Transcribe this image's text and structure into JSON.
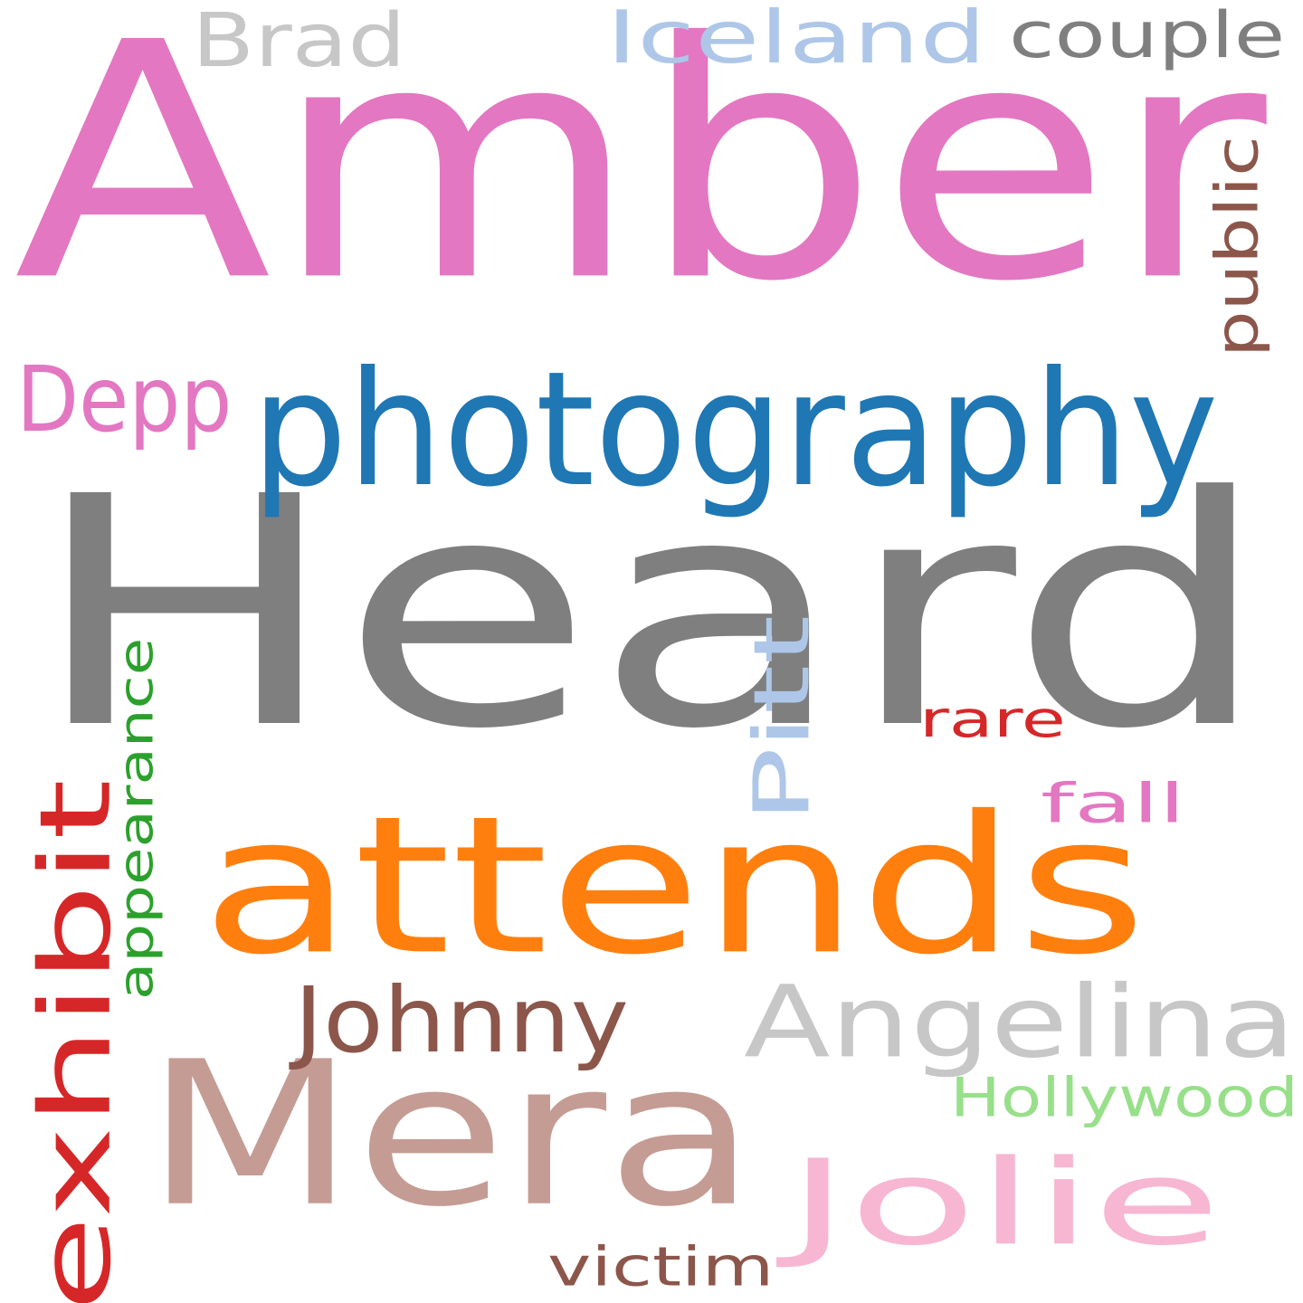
{
  "words": [
    {
      "text": "Heard",
      "color": "#7f7f7f"
    },
    {
      "text": "Amber",
      "color": "#e377c2"
    },
    {
      "text": "attends",
      "color": "#ff7f0e"
    },
    {
      "text": "Mera",
      "color": "#c49c94"
    },
    {
      "text": "photography",
      "color": "#1f77b4"
    },
    {
      "text": "exhibit",
      "color": "#d62728"
    },
    {
      "text": "Jolie",
      "color": "#f7b6d2"
    },
    {
      "text": "Angelina",
      "color": "#c7c7c7"
    },
    {
      "text": "Johnny",
      "color": "#8c564b"
    },
    {
      "text": "Iceland",
      "color": "#aec7e8"
    },
    {
      "text": "Brad",
      "color": "#c7c7c7"
    },
    {
      "text": "couple",
      "color": "#7f7f7f"
    },
    {
      "text": "Depp",
      "color": "#e377c2"
    },
    {
      "text": "Pitt",
      "color": "#aec7e8"
    },
    {
      "text": "appearance",
      "color": "#2ca02c"
    },
    {
      "text": "public",
      "color": "#8c564b"
    },
    {
      "text": "Hollywood",
      "color": "#98df8a"
    },
    {
      "text": "victim",
      "color": "#8c564b"
    },
    {
      "text": "rare",
      "color": "#d62728"
    },
    {
      "text": "fall",
      "color": "#e377c2"
    }
  ]
}
